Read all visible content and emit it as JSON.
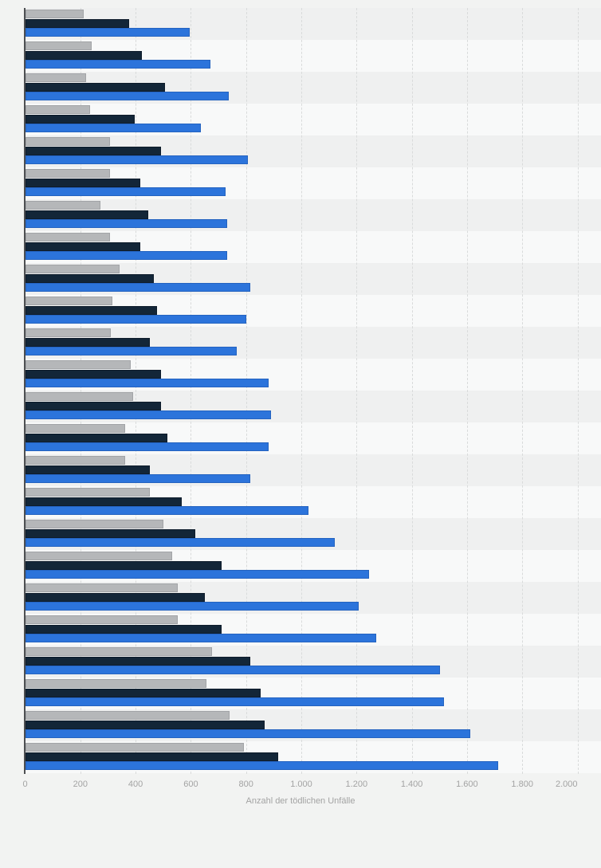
{
  "chart_data": {
    "type": "bar",
    "orientation": "horizontal",
    "title": "",
    "xlabel": "Anzahl der tödlichen Unfälle",
    "ylabel": "",
    "xlim": [
      0,
      2000
    ],
    "x_tick_values": [
      0,
      200,
      400,
      600,
      800,
      1000,
      1200,
      1400,
      1600,
      1800,
      2000
    ],
    "x_tick_labels": [
      "0",
      "200",
      "400",
      "600",
      "800",
      "1.000",
      "1.200",
      "1.400",
      "1.600",
      "1.800",
      "2.000"
    ],
    "grid": "vertical-dashed",
    "row_striping": true,
    "legend_visible": false,
    "category_labels_visible": false,
    "group_count": 24,
    "series": [
      {
        "name": "series-gray",
        "color": "#b5b7b9",
        "values": [
          210,
          240,
          220,
          235,
          305,
          305,
          270,
          305,
          340,
          315,
          310,
          380,
          390,
          360,
          360,
          450,
          500,
          530,
          550,
          550,
          675,
          655,
          740,
          790
        ]
      },
      {
        "name": "series-darkblue",
        "color": "#132638",
        "values": [
          375,
          420,
          505,
          395,
          490,
          415,
          445,
          415,
          465,
          475,
          450,
          490,
          490,
          515,
          450,
          565,
          615,
          710,
          650,
          710,
          815,
          850,
          865,
          915
        ]
      },
      {
        "name": "series-blue",
        "color": "#2c74db",
        "values": [
          595,
          670,
          735,
          635,
          805,
          725,
          730,
          730,
          815,
          800,
          765,
          880,
          890,
          880,
          815,
          1025,
          1120,
          1245,
          1205,
          1270,
          1500,
          1515,
          1610,
          1710
        ]
      }
    ]
  },
  "axis": {
    "x_title": "Anzahl der tödlichen Unfälle"
  },
  "colors": {
    "background": "#f2f3f2",
    "stripe_dark": "#eff0f0",
    "stripe_light": "#f8f9f9",
    "gridline": "#d9dbdb",
    "axis_line": "#4d4f52",
    "tick_text": "#a3a3a3"
  }
}
